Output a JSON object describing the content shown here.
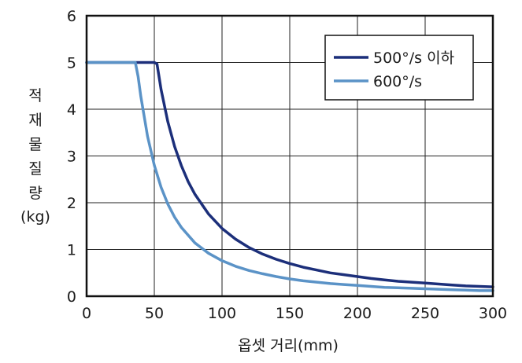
{
  "chart_data": {
    "type": "line",
    "xlabel": "옵셋 거리(mm)",
    "ylabel_lines": [
      "적",
      "재",
      "물",
      "질",
      "량",
      "(kg)"
    ],
    "xlim": [
      0,
      300
    ],
    "ylim": [
      0,
      6
    ],
    "x_ticks": [
      "0",
      "50",
      "100",
      "150",
      "200",
      "250",
      "300"
    ],
    "y_ticks": [
      "0",
      "1",
      "2",
      "3",
      "4",
      "5",
      "6"
    ],
    "grid": true,
    "legend_position": "top-right",
    "series": [
      {
        "name": "500°/s 이하",
        "color": "#1c2f7a",
        "x": [
          0,
          50,
          52,
          55,
          60,
          65,
          70,
          75,
          80,
          90,
          100,
          110,
          120,
          130,
          140,
          150,
          160,
          170,
          180,
          190,
          200,
          210,
          220,
          230,
          240,
          250,
          260,
          270,
          280,
          290,
          300
        ],
        "y": [
          5,
          5,
          4.97,
          4.42,
          3.73,
          3.2,
          2.79,
          2.45,
          2.18,
          1.76,
          1.45,
          1.22,
          1.04,
          0.9,
          0.79,
          0.7,
          0.62,
          0.56,
          0.5,
          0.46,
          0.42,
          0.38,
          0.35,
          0.32,
          0.3,
          0.28,
          0.26,
          0.24,
          0.22,
          0.21,
          0.2
        ]
      },
      {
        "name": "600°/s",
        "color": "#5b93c7",
        "x": [
          0,
          36,
          38,
          40,
          45,
          50,
          55,
          60,
          65,
          70,
          80,
          90,
          100,
          110,
          120,
          130,
          140,
          150,
          160,
          170,
          180,
          190,
          200,
          210,
          220,
          230,
          240,
          250,
          260,
          270,
          280,
          290,
          300
        ],
        "y": [
          5,
          5,
          4.7,
          4.28,
          3.42,
          2.8,
          2.33,
          1.97,
          1.69,
          1.47,
          1.14,
          0.92,
          0.76,
          0.64,
          0.55,
          0.48,
          0.42,
          0.37,
          0.33,
          0.3,
          0.27,
          0.25,
          0.23,
          0.21,
          0.19,
          0.18,
          0.17,
          0.16,
          0.15,
          0.14,
          0.13,
          0.12,
          0.12
        ]
      }
    ]
  }
}
